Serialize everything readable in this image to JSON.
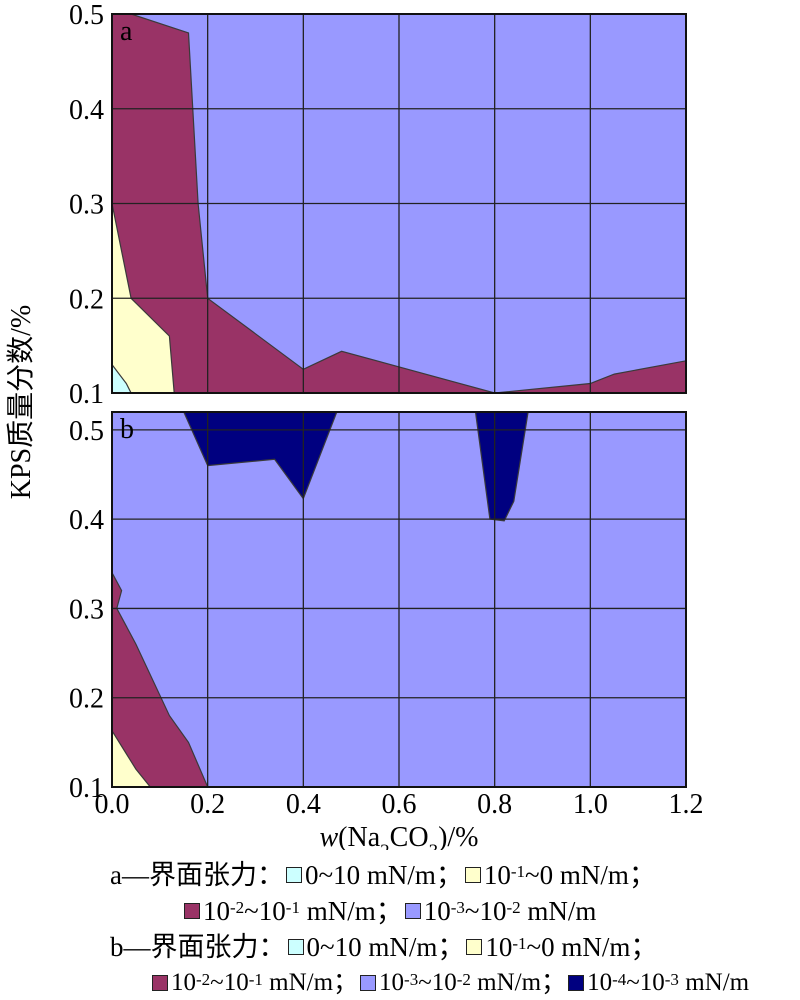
{
  "chart_data": {
    "type": "contour",
    "xlabel": "w(Na2CO3)/%",
    "ylabel": "KPS质量分数/%",
    "x_ticks": [
      "0.0",
      "0.2",
      "0.4",
      "0.6",
      "0.8",
      "1.0",
      "1.2"
    ],
    "xlim": [
      0,
      1.2
    ],
    "panels": [
      {
        "label": "a",
        "ylim": [
          0.1,
          0.5
        ],
        "y_ticks": [
          "0.1",
          "0.2",
          "0.3",
          "0.4",
          "0.5"
        ],
        "legend_title": "a—界面张力：",
        "regions": [
          {
            "name": "10⁻³~10⁻² mN/m",
            "color": "#9999ff",
            "polygon": [
              [
                0,
                0.1
              ],
              [
                1.2,
                0.1
              ],
              [
                1.2,
                0.5
              ],
              [
                0,
                0.5
              ]
            ]
          },
          {
            "name": "10⁻²~10⁻¹ mN/m",
            "color": "#993366",
            "polygon": [
              [
                0,
                0.5
              ],
              [
                0.04,
                0.5
              ],
              [
                0.16,
                0.48
              ],
              [
                0.18,
                0.3
              ],
              [
                0.2,
                0.2
              ],
              [
                0.4,
                0.125
              ],
              [
                0.48,
                0.144
              ],
              [
                0.8,
                0.1
              ],
              [
                1.0,
                0.11
              ],
              [
                1.05,
                0.12
              ],
              [
                1.2,
                0.134
              ],
              [
                1.2,
                0.1
              ],
              [
                0,
                0.1
              ]
            ]
          },
          {
            "name": "10⁻¹~0 mN/m",
            "color": "#ffffcc",
            "polygon": [
              [
                0,
                0.3
              ],
              [
                0.04,
                0.2
              ],
              [
                0.12,
                0.16
              ],
              [
                0.13,
                0.1
              ],
              [
                0,
                0.1
              ]
            ]
          },
          {
            "name": "0~10 mN/m",
            "color": "#ccffff",
            "polygon": [
              [
                0,
                0.13
              ],
              [
                0.03,
                0.11
              ],
              [
                0.04,
                0.1
              ],
              [
                0,
                0.1
              ]
            ]
          }
        ]
      },
      {
        "label": "b",
        "ylim": [
          0.1,
          0.52
        ],
        "y_ticks": [
          "0.1",
          "0.2",
          "0.3",
          "0.4",
          "0.5"
        ],
        "legend_title": "b—界面张力：",
        "regions": [
          {
            "name": "10⁻³~10⁻² mN/m",
            "color": "#9999ff",
            "polygon": [
              [
                0,
                0.1
              ],
              [
                1.2,
                0.1
              ],
              [
                1.2,
                0.52
              ],
              [
                0,
                0.52
              ]
            ]
          },
          {
            "name": "10⁻²~10⁻¹ mN/m",
            "color": "#993366",
            "polygon": [
              [
                0,
                0.34
              ],
              [
                0.02,
                0.32
              ],
              [
                0.01,
                0.3
              ],
              [
                0.05,
                0.26
              ],
              [
                0.12,
                0.18
              ],
              [
                0.16,
                0.15
              ],
              [
                0.2,
                0.1
              ],
              [
                0,
                0.1
              ]
            ]
          },
          {
            "name": "10⁻¹~0 mN/m",
            "color": "#ffffcc",
            "polygon": [
              [
                0,
                0.163
              ],
              [
                0.05,
                0.12
              ],
              [
                0.08,
                0.1
              ],
              [
                0,
                0.1
              ]
            ]
          },
          {
            "name": "10⁻⁴~10⁻³ mN/m",
            "color": "#000080",
            "polygon": [
              [
                0.15,
                0.52
              ],
              [
                0.2,
                0.46
              ],
              [
                0.34,
                0.467
              ],
              [
                0.4,
                0.423
              ],
              [
                0.47,
                0.52
              ]
            ]
          },
          {
            "name": "10⁻⁴~10⁻³ mN/m",
            "color": "#000080",
            "polygon": [
              [
                0.76,
                0.52
              ],
              [
                0.79,
                0.4
              ],
              [
                0.82,
                0.398
              ],
              [
                0.84,
                0.42
              ],
              [
                0.87,
                0.52
              ]
            ]
          }
        ]
      }
    ],
    "grid": true
  },
  "legend": {
    "rows": [
      {
        "prefix": "a—界面张力：",
        "items": [
          {
            "color": "#ccffff",
            "pre": "0~10 mN/m",
            "sup1": "",
            "mid": "",
            "sup2": "",
            "post": "；"
          },
          {
            "color": "#ffffcc",
            "pre": "10",
            "sup1": "-1",
            "mid": "~0 mN/m",
            "sup2": "",
            "post": "；"
          }
        ]
      },
      {
        "prefix": "",
        "items": [
          {
            "color": "#993366",
            "pre": "10",
            "sup1": "-2",
            "mid": "~10",
            "sup2": "-1",
            "post": " mN/m；"
          },
          {
            "color": "#9999ff",
            "pre": "10",
            "sup1": "-3",
            "mid": "~10",
            "sup2": "-2",
            "post": " mN/m"
          }
        ]
      },
      {
        "prefix": "b—界面张力：",
        "items": [
          {
            "color": "#ccffff",
            "pre": "0~10 mN/m",
            "sup1": "",
            "mid": "",
            "sup2": "",
            "post": "；"
          },
          {
            "color": "#ffffcc",
            "pre": "10",
            "sup1": "-1",
            "mid": "~0 mN/m",
            "sup2": "",
            "post": "；"
          }
        ]
      },
      {
        "prefix": "",
        "items": [
          {
            "color": "#993366",
            "pre": "10",
            "sup1": "-2",
            "mid": "~10",
            "sup2": "-1",
            "post": " mN/m；"
          },
          {
            "color": "#9999ff",
            "pre": "10",
            "sup1": "-3",
            "mid": "~10",
            "sup2": "-2",
            "post": " mN/m；"
          },
          {
            "color": "#000080",
            "pre": "10",
            "sup1": "-4",
            "mid": "~10",
            "sup2": "-3",
            "post": " mN/m"
          }
        ]
      }
    ]
  }
}
